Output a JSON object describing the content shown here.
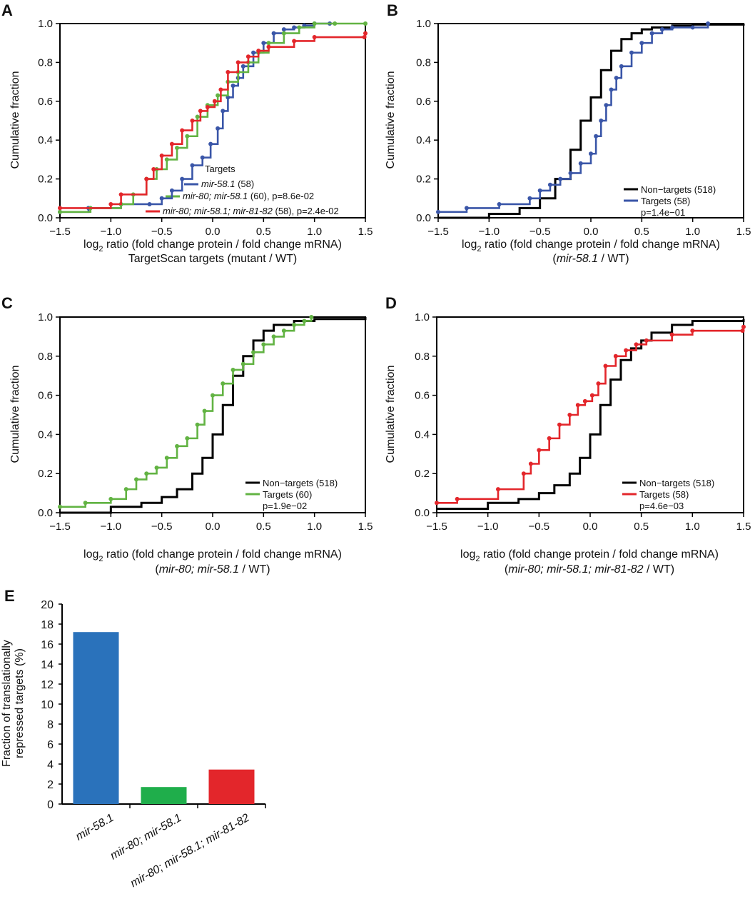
{
  "chart_data": [
    {
      "panel": "A",
      "type": "line",
      "xlim": [
        -1.5,
        1.5
      ],
      "ylim": [
        0,
        1.0
      ],
      "xticks": [
        "−1.5",
        "−1.0",
        "−0.5",
        "0.0",
        "0.5",
        "1.0",
        "1.5"
      ],
      "yticks": [
        "0.0",
        "0.2",
        "0.4",
        "0.6",
        "0.8",
        "1.0"
      ],
      "ylabel": "Cumulative fraction",
      "xlabel_pre": "log",
      "xlabel_sub": "2",
      "xlabel_post": " ratio (fold change protein / fold change mRNA)",
      "xlabel2": "TargetScan targets (mutant / WT)",
      "legend_title": "Targets",
      "series": [
        {
          "name": "mir-58.1",
          "legend_italic": "mir-58.1",
          "legend_rest": " (58)",
          "color": "#3a56a8",
          "x": [
            -1.5,
            -1.22,
            -0.9,
            -0.62,
            -0.5,
            -0.4,
            -0.3,
            -0.2,
            -0.1,
            -0.02,
            0.05,
            0.1,
            0.15,
            0.2,
            0.25,
            0.3,
            0.4,
            0.5,
            0.6,
            0.7,
            0.8,
            0.9,
            1.0,
            1.15
          ],
          "y": [
            0.03,
            0.05,
            0.07,
            0.07,
            0.1,
            0.14,
            0.2,
            0.27,
            0.31,
            0.38,
            0.46,
            0.55,
            0.62,
            0.68,
            0.72,
            0.78,
            0.85,
            0.9,
            0.95,
            0.97,
            0.98,
            0.99,
            1.0,
            1.0
          ]
        },
        {
          "name": "mir-80; mir-58.1",
          "legend_italic": "mir-80; mir-58.1",
          "legend_rest": " (60), p=8.6e-02",
          "color": "#62b343",
          "x": [
            -1.5,
            -1.2,
            -0.9,
            -0.78,
            -0.65,
            -0.55,
            -0.45,
            -0.35,
            -0.25,
            -0.15,
            -0.05,
            0.05,
            0.15,
            0.25,
            0.35,
            0.45,
            0.55,
            0.7,
            0.85,
            1.0,
            1.2,
            1.5
          ],
          "y": [
            0.03,
            0.05,
            0.07,
            0.12,
            0.2,
            0.25,
            0.3,
            0.36,
            0.42,
            0.52,
            0.58,
            0.63,
            0.7,
            0.75,
            0.8,
            0.85,
            0.9,
            0.95,
            0.98,
            1.0,
            1.0,
            1.0
          ]
        },
        {
          "name": "mir-80; mir-58.1; mir-81-82",
          "legend_italic": "mir-80; mir-58.1; mir-81-82",
          "legend_rest": " (58), p=2.4e-02",
          "color": "#e3262b",
          "x": [
            -1.5,
            -1.0,
            -0.9,
            -0.65,
            -0.58,
            -0.5,
            -0.4,
            -0.3,
            -0.2,
            -0.12,
            -0.05,
            0.02,
            0.08,
            0.15,
            0.25,
            0.35,
            0.45,
            0.55,
            0.8,
            1.0,
            1.49,
            1.5
          ],
          "y": [
            0.05,
            0.07,
            0.12,
            0.2,
            0.25,
            0.32,
            0.38,
            0.45,
            0.5,
            0.55,
            0.57,
            0.6,
            0.66,
            0.75,
            0.8,
            0.83,
            0.86,
            0.88,
            0.91,
            0.93,
            0.93,
            0.95
          ]
        }
      ]
    },
    {
      "panel": "B",
      "type": "line",
      "xlim": [
        -1.5,
        1.5
      ],
      "ylim": [
        0,
        1.0
      ],
      "xticks": [
        "−1.5",
        "−1.0",
        "−0.5",
        "0.0",
        "0.5",
        "1.0",
        "1.5"
      ],
      "yticks": [
        "0.0",
        "0.2",
        "0.4",
        "0.6",
        "0.8",
        "1.0"
      ],
      "ylabel": "Cumulative fraction",
      "xlabel_pre": "log",
      "xlabel_sub": "2",
      "xlabel_post": " ratio (fold change protein / fold change mRNA)",
      "xlabel2_pre": "(",
      "xlabel2_italic": "mir-58.1",
      "xlabel2_post": " / WT)",
      "legend": [
        "Non−targets (518)",
        "Targets (58)"
      ],
      "pvalue": "p=1.4e−01",
      "series": [
        {
          "name": "Non-targets (518)",
          "color": "#000000",
          "x": [
            -1.5,
            -1.0,
            -0.7,
            -0.5,
            -0.35,
            -0.2,
            -0.1,
            0.0,
            0.1,
            0.2,
            0.3,
            0.4,
            0.5,
            0.6,
            0.8,
            1.0,
            1.5
          ],
          "y": [
            0.0,
            0.02,
            0.05,
            0.1,
            0.2,
            0.35,
            0.5,
            0.62,
            0.76,
            0.86,
            0.92,
            0.95,
            0.97,
            0.98,
            0.99,
            0.995,
            1.0
          ]
        },
        {
          "name": "Targets (58)",
          "color": "#3a56a8",
          "x": [
            -1.5,
            -1.22,
            -0.9,
            -0.6,
            -0.5,
            -0.4,
            -0.3,
            -0.2,
            -0.1,
            0.0,
            0.05,
            0.1,
            0.15,
            0.2,
            0.25,
            0.3,
            0.4,
            0.5,
            0.6,
            0.7,
            0.8,
            1.0,
            1.15
          ],
          "y": [
            0.03,
            0.05,
            0.07,
            0.1,
            0.14,
            0.17,
            0.2,
            0.23,
            0.28,
            0.33,
            0.42,
            0.5,
            0.58,
            0.66,
            0.72,
            0.78,
            0.85,
            0.9,
            0.95,
            0.97,
            0.98,
            0.98,
            1.0
          ]
        }
      ]
    },
    {
      "panel": "C",
      "type": "line",
      "xlim": [
        -1.5,
        1.5
      ],
      "ylim": [
        0,
        1.0
      ],
      "xticks": [
        "−1.5",
        "−1.0",
        "−0.5",
        "0.0",
        "0.5",
        "1.0",
        "1.5"
      ],
      "yticks": [
        "0.0",
        "0.2",
        "0.4",
        "0.6",
        "0.8",
        "1.0"
      ],
      "ylabel": "Cumulative fraction",
      "xlabel_pre": "log",
      "xlabel_sub": "2",
      "xlabel_post": " ratio (fold change protein / fold change mRNA)",
      "xlabel2_pre": "(",
      "xlabel2_italic": "mir-80; mir-58.1",
      "xlabel2_post": " / WT)",
      "legend": [
        "Non−targets (518)",
        "Targets (60)"
      ],
      "pvalue": "p=1.9e−02",
      "series": [
        {
          "name": "Non-targets (518)",
          "color": "#000000",
          "x": [
            -1.5,
            -1.0,
            -0.7,
            -0.5,
            -0.35,
            -0.2,
            -0.1,
            0.0,
            0.1,
            0.2,
            0.3,
            0.4,
            0.5,
            0.6,
            0.8,
            1.0,
            1.5
          ],
          "y": [
            0.0,
            0.03,
            0.05,
            0.08,
            0.12,
            0.2,
            0.28,
            0.4,
            0.55,
            0.7,
            0.8,
            0.88,
            0.93,
            0.96,
            0.98,
            0.99,
            1.0
          ]
        },
        {
          "name": "Targets (60)",
          "color": "#62b343",
          "x": [
            -1.5,
            -1.25,
            -1.0,
            -0.85,
            -0.75,
            -0.65,
            -0.55,
            -0.45,
            -0.35,
            -0.25,
            -0.15,
            -0.08,
            0.0,
            0.1,
            0.2,
            0.3,
            0.4,
            0.5,
            0.6,
            0.7,
            0.8,
            0.9,
            0.97
          ],
          "y": [
            0.03,
            0.05,
            0.07,
            0.12,
            0.17,
            0.2,
            0.23,
            0.28,
            0.34,
            0.38,
            0.45,
            0.52,
            0.6,
            0.66,
            0.73,
            0.76,
            0.82,
            0.86,
            0.9,
            0.93,
            0.96,
            0.98,
            1.0
          ]
        }
      ]
    },
    {
      "panel": "D",
      "type": "line",
      "xlim": [
        -1.5,
        1.5
      ],
      "ylim": [
        0,
        1.0
      ],
      "xticks": [
        "−1.5",
        "−1.0",
        "−0.5",
        "0.0",
        "0.5",
        "1.0",
        "1.5"
      ],
      "yticks": [
        "0.0",
        "0.2",
        "0.4",
        "0.6",
        "0.8",
        "1.0"
      ],
      "ylabel": "Cumulative fraction",
      "xlabel_pre": "log",
      "xlabel_sub": "2",
      "xlabel_post": " ratio (fold change protein / fold change mRNA)",
      "xlabel2_pre": "(",
      "xlabel2_italic": "mir-80; mir-58.1; mir-81-82",
      "xlabel2_post": " / WT)",
      "legend": [
        "Non−targets (518)",
        "Targets (58)"
      ],
      "pvalue": "p=4.6e−03",
      "series": [
        {
          "name": "Non-targets (518)",
          "color": "#000000",
          "x": [
            -1.5,
            -1.0,
            -0.7,
            -0.5,
            -0.35,
            -0.2,
            -0.1,
            0.0,
            0.1,
            0.2,
            0.3,
            0.4,
            0.5,
            0.6,
            0.8,
            1.0,
            1.5
          ],
          "y": [
            0.02,
            0.05,
            0.07,
            0.1,
            0.14,
            0.2,
            0.28,
            0.4,
            0.55,
            0.68,
            0.78,
            0.84,
            0.88,
            0.92,
            0.96,
            0.98,
            0.99
          ]
        },
        {
          "name": "Targets (58)",
          "color": "#e3262b",
          "x": [
            -1.5,
            -1.3,
            -0.9,
            -0.65,
            -0.58,
            -0.5,
            -0.4,
            -0.3,
            -0.2,
            -0.12,
            -0.05,
            0.02,
            0.08,
            0.15,
            0.25,
            0.35,
            0.45,
            0.55,
            0.8,
            1.0,
            1.49,
            1.5
          ],
          "y": [
            0.05,
            0.07,
            0.12,
            0.2,
            0.25,
            0.32,
            0.38,
            0.45,
            0.5,
            0.55,
            0.57,
            0.6,
            0.66,
            0.75,
            0.8,
            0.83,
            0.86,
            0.88,
            0.91,
            0.93,
            0.93,
            0.95
          ]
        }
      ]
    },
    {
      "panel": "E",
      "type": "bar",
      "categories": [
        "mir-58.1",
        "mir-80; mir-58.1",
        "mir-80; mir-58.1; mir-81-82"
      ],
      "values": [
        17.2,
        1.7,
        3.45
      ],
      "colors": [
        "#2a72bb",
        "#1fae4b",
        "#e3262b"
      ],
      "ylim": [
        0,
        20
      ],
      "yticks": [
        "0",
        "2",
        "4",
        "6",
        "8",
        "10",
        "12",
        "14",
        "16",
        "18",
        "20"
      ],
      "ylabel_line1": "Fraction of translationally",
      "ylabel_line2": "repressed targets (%)"
    }
  ]
}
